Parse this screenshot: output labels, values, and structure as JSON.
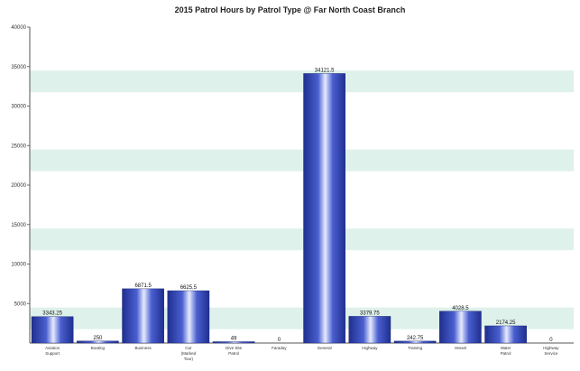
{
  "chart_data": {
    "type": "bar",
    "title": "2015 Patrol Hours by Patrol Type @ Far North Coast Branch",
    "xlabel": "",
    "ylabel": "",
    "ylim": [
      0,
      40000
    ],
    "yticks": [
      5000,
      10000,
      15000,
      20000,
      25000,
      30000,
      35000,
      40000
    ],
    "grid": "horizontal bands",
    "legend": "none",
    "categories": [
      "Aviation Support",
      "Boating",
      "Business",
      "Car (Marked Tour)",
      "Dive Site Patrol",
      "Faraday",
      "General",
      "Highway",
      "Training",
      "Vessel",
      "Water Patrol",
      "Highway Service"
    ],
    "values": [
      3343.25,
      250,
      6871.5,
      6625.5,
      49,
      0,
      34121.5,
      3379.75,
      242.75,
      4028.5,
      2174.25,
      0
    ],
    "data_labels": [
      "3343.25",
      "250",
      "6871.5",
      "6625.5",
      "49",
      "0",
      "34121.5",
      "3379.75",
      "242.75",
      "4028.5",
      "2174.25",
      "0"
    ],
    "colors": {
      "bar": "#2b3fa8",
      "bar_highlight": "#dfe6ff",
      "band": "#d9efe8",
      "axis": "#555555"
    }
  }
}
